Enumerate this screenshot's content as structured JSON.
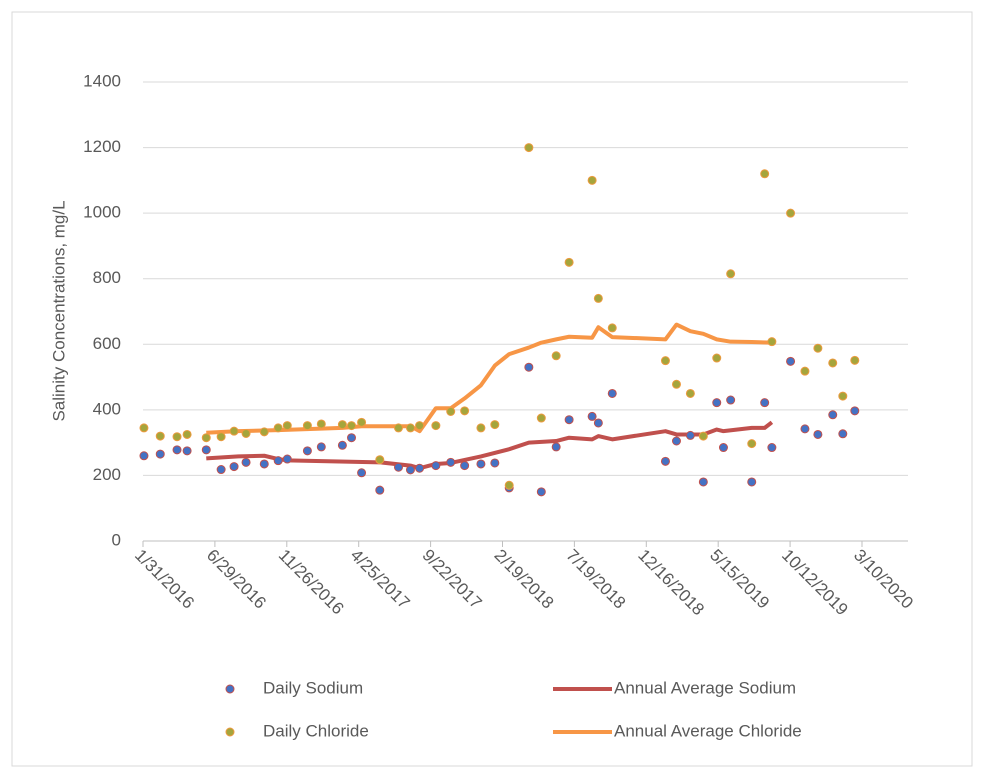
{
  "chart_data": {
    "type": "scatter-line",
    "y_label": "Salinity Concentrations, mg/L",
    "ylim": [
      0,
      1400
    ],
    "yticks": [
      0,
      200,
      400,
      600,
      800,
      1000,
      1200,
      1400
    ],
    "xlim": [
      "1/31/2016",
      "6/14/2020"
    ],
    "xticks": [
      "1/31/2016",
      "6/29/2016",
      "11/26/2016",
      "4/25/2017",
      "9/22/2017",
      "2/19/2018",
      "7/19/2018",
      "12/16/2018",
      "5/15/2019",
      "10/12/2019",
      "3/10/2020"
    ],
    "grid": true,
    "x": [
      "2/2/2016",
      "3/7/2016",
      "4/11/2016",
      "5/2/2016",
      "6/11/2016",
      "7/12/2016",
      "8/8/2016",
      "9/2/2016",
      "10/10/2016",
      "11/8/2016",
      "11/27/2016",
      "1/8/2017",
      "2/6/2017",
      "3/22/2017",
      "4/10/2017",
      "5/1/2017",
      "6/8/2017",
      "7/17/2017",
      "8/11/2017",
      "8/30/2017",
      "10/3/2017",
      "11/3/2017",
      "12/2/2017",
      "1/5/2018",
      "2/3/2018",
      "3/5/2018",
      "4/15/2018",
      "5/11/2018",
      "6/11/2018",
      "7/8/2018",
      "8/25/2018",
      "9/7/2018",
      "10/6/2018",
      "1/25/2019",
      "2/17/2019",
      "3/18/2019",
      "4/14/2019",
      "5/12/2019",
      "5/26/2019",
      "6/10/2019",
      "7/24/2019",
      "8/20/2019",
      "9/4/2019",
      "10/13/2019",
      "11/12/2019",
      "12/9/2019",
      "1/9/2020",
      "1/30/2020",
      "2/24/2020"
    ],
    "series": [
      {
        "name": "Daily Sodium",
        "kind": "scatter",
        "color": "#4472c4",
        "edgecolor": "#c0504d",
        "values": [
          260,
          265,
          278,
          275,
          278,
          218,
          227,
          240,
          235,
          245,
          250,
          275,
          287,
          292,
          315,
          208,
          155,
          225,
          217,
          222,
          230,
          240,
          230,
          235,
          238,
          162,
          530,
          150,
          287,
          370,
          380,
          360,
          450,
          243,
          305,
          322,
          180,
          422,
          285,
          430,
          180,
          422,
          285,
          548,
          342,
          325,
          385,
          327,
          397
        ]
      },
      {
        "name": "Annual Average Sodium",
        "kind": "line",
        "color": "#c0504d",
        "x": [
          "6/11/2016",
          "8/17/2016",
          "10/10/2016",
          "11/8/2016",
          "11/27/2016",
          "6/8/2017",
          "8/11/2017",
          "8/30/2017",
          "10/3/2017",
          "11/3/2017",
          "1/5/2018",
          "3/5/2018",
          "4/15/2018",
          "6/11/2018",
          "7/8/2018",
          "8/25/2018",
          "9/7/2018",
          "10/6/2018",
          "1/25/2019",
          "2/17/2019",
          "4/14/2019",
          "5/12/2019",
          "5/26/2019",
          "7/24/2019",
          "8/20/2019",
          "9/4/2019"
        ],
        "values": [
          252,
          258,
          260,
          250,
          246,
          240,
          230,
          222,
          235,
          238,
          258,
          280,
          300,
          305,
          315,
          310,
          320,
          310,
          335,
          325,
          325,
          340,
          335,
          345,
          345,
          362
        ]
      },
      {
        "name": "Daily Chloride",
        "kind": "scatter",
        "color": "#a5a53c",
        "edgecolor": "#ed9a3f",
        "values": [
          345,
          320,
          318,
          325,
          315,
          318,
          335,
          328,
          333,
          345,
          352,
          352,
          357,
          355,
          352,
          362,
          248,
          345,
          345,
          352,
          352,
          395,
          397,
          345,
          355,
          170,
          1200,
          375,
          565,
          850,
          1100,
          740,
          650,
          550,
          478,
          450,
          320,
          558,
          null,
          815,
          297,
          1120,
          608,
          1000,
          518,
          588,
          543,
          442,
          551
        ]
      },
      {
        "name": "Annual Average Chloride",
        "kind": "line",
        "color": "#f79646",
        "x": [
          "6/11/2016",
          "8/17/2016",
          "11/8/2016",
          "3/22/2017",
          "5/1/2017",
          "7/17/2017",
          "8/11/2017",
          "8/30/2017",
          "10/3/2017",
          "11/3/2017",
          "12/2/2017",
          "1/5/2018",
          "2/3/2018",
          "3/5/2018",
          "4/15/2018",
          "5/11/2018",
          "6/11/2018",
          "7/8/2018",
          "8/25/2018",
          "9/7/2018",
          "10/6/2018",
          "1/25/2019",
          "2/17/2019",
          "3/18/2019",
          "4/14/2019",
          "5/12/2019",
          "6/10/2019",
          "7/24/2019",
          "9/4/2019"
        ],
        "values": [
          330,
          335,
          338,
          345,
          350,
          350,
          350,
          335,
          405,
          405,
          435,
          475,
          535,
          570,
          590,
          605,
          615,
          623,
          620,
          652,
          622,
          615,
          660,
          640,
          632,
          615,
          608,
          607,
          605
        ]
      }
    ]
  }
}
